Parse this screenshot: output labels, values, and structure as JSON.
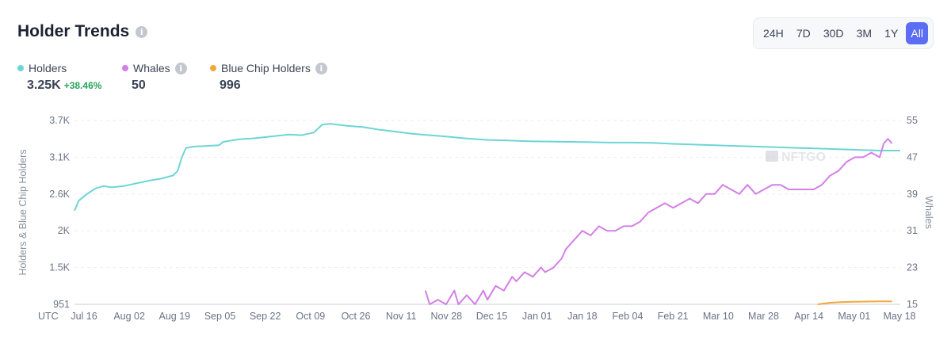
{
  "header": {
    "title": "Holder Trends",
    "info_icon": "i"
  },
  "time_range": {
    "options": [
      "24H",
      "7D",
      "30D",
      "3M",
      "1Y",
      "All"
    ],
    "active": "All"
  },
  "legend": {
    "holders": {
      "label": "Holders",
      "value": "3.25K",
      "change": "+38.46%",
      "color": "#6dd5d5"
    },
    "whales": {
      "label": "Whales",
      "value": "50",
      "color": "#d47fe6"
    },
    "blue_chip": {
      "label": "Blue Chip Holders",
      "value": "996",
      "color": "#f2a93b"
    }
  },
  "watermark": "NFTGO",
  "chart_data": {
    "type": "line",
    "timezone_label": "UTC",
    "x_ticks": [
      "Jul 16",
      "Aug 02",
      "Aug 19",
      "Sep 05",
      "Sep 22",
      "Oct 09",
      "Oct 26",
      "Nov 11",
      "Nov 28",
      "Dec 15",
      "Jan 01",
      "Jan 18",
      "Feb 04",
      "Feb 21",
      "Mar 10",
      "Mar 28",
      "Apr 14",
      "May 01",
      "May 18"
    ],
    "y_left": {
      "label": "Holders & Blue Chip Holders",
      "ticks": [
        "3.7K",
        "3.1K",
        "2.6K",
        "2K",
        "1.5K",
        "951"
      ],
      "range": [
        951,
        3700
      ]
    },
    "y_right": {
      "label": "Whales",
      "ticks": [
        "55",
        "47",
        "39",
        "31",
        "23",
        "15"
      ],
      "range": [
        15,
        55
      ]
    },
    "series": [
      {
        "name": "Holders",
        "axis": "left",
        "color": "#6dd5d5",
        "points": [
          [
            0,
            2350
          ],
          [
            1,
            2500
          ],
          [
            3,
            2600
          ],
          [
            5,
            2680
          ],
          [
            7,
            2720
          ],
          [
            9,
            2700
          ],
          [
            12,
            2720
          ],
          [
            15,
            2760
          ],
          [
            18,
            2800
          ],
          [
            21,
            2830
          ],
          [
            24,
            2880
          ],
          [
            25,
            2950
          ],
          [
            26,
            3150
          ],
          [
            27,
            3290
          ],
          [
            29,
            3310
          ],
          [
            32,
            3320
          ],
          [
            35,
            3330
          ],
          [
            36,
            3380
          ],
          [
            38,
            3400
          ],
          [
            40,
            3420
          ],
          [
            43,
            3430
          ],
          [
            46,
            3450
          ],
          [
            49,
            3470
          ],
          [
            52,
            3490
          ],
          [
            55,
            3480
          ],
          [
            58,
            3520
          ],
          [
            60,
            3640
          ],
          [
            62,
            3650
          ],
          [
            66,
            3620
          ],
          [
            70,
            3600
          ],
          [
            74,
            3560
          ],
          [
            78,
            3530
          ],
          [
            82,
            3500
          ],
          [
            86,
            3480
          ],
          [
            90,
            3460
          ],
          [
            95,
            3430
          ],
          [
            100,
            3410
          ],
          [
            105,
            3400
          ],
          [
            110,
            3390
          ],
          [
            115,
            3385
          ],
          [
            120,
            3380
          ],
          [
            125,
            3375
          ],
          [
            130,
            3370
          ],
          [
            135,
            3370
          ],
          [
            140,
            3365
          ],
          [
            145,
            3350
          ],
          [
            150,
            3340
          ],
          [
            155,
            3330
          ],
          [
            160,
            3320
          ],
          [
            165,
            3310
          ],
          [
            170,
            3300
          ],
          [
            175,
            3290
          ],
          [
            180,
            3280
          ],
          [
            185,
            3270
          ],
          [
            190,
            3260
          ],
          [
            195,
            3250
          ],
          [
            200,
            3250
          ]
        ]
      },
      {
        "name": "Whales",
        "axis": "right",
        "color": "#d47fe6",
        "points": [
          [
            85,
            18
          ],
          [
            86,
            15
          ],
          [
            88,
            16
          ],
          [
            90,
            15
          ],
          [
            92,
            18
          ],
          [
            93,
            15
          ],
          [
            95,
            17
          ],
          [
            97,
            15
          ],
          [
            99,
            18
          ],
          [
            100,
            16
          ],
          [
            102,
            19
          ],
          [
            104,
            18
          ],
          [
            106,
            21
          ],
          [
            107,
            20
          ],
          [
            109,
            22
          ],
          [
            111,
            21
          ],
          [
            113,
            23
          ],
          [
            114,
            22
          ],
          [
            116,
            23
          ],
          [
            118,
            25
          ],
          [
            119,
            27
          ],
          [
            121,
            29
          ],
          [
            123,
            31
          ],
          [
            125,
            30
          ],
          [
            127,
            32
          ],
          [
            129,
            31
          ],
          [
            131,
            31
          ],
          [
            133,
            32
          ],
          [
            135,
            32
          ],
          [
            137,
            33
          ],
          [
            139,
            35
          ],
          [
            141,
            36
          ],
          [
            143,
            37
          ],
          [
            145,
            36
          ],
          [
            147,
            37
          ],
          [
            149,
            38
          ],
          [
            151,
            37
          ],
          [
            153,
            39
          ],
          [
            155,
            39
          ],
          [
            157,
            41
          ],
          [
            159,
            40
          ],
          [
            161,
            39
          ],
          [
            163,
            41
          ],
          [
            165,
            39
          ],
          [
            167,
            40
          ],
          [
            169,
            41
          ],
          [
            171,
            41
          ],
          [
            173,
            40
          ],
          [
            175,
            40
          ],
          [
            177,
            40
          ],
          [
            179,
            40
          ],
          [
            181,
            41
          ],
          [
            183,
            43
          ],
          [
            185,
            44
          ],
          [
            187,
            46
          ],
          [
            189,
            47
          ],
          [
            191,
            47
          ],
          [
            193,
            48
          ],
          [
            195,
            47
          ],
          [
            196,
            50
          ],
          [
            197,
            51
          ],
          [
            198,
            50
          ]
        ]
      },
      {
        "name": "Blue Chip Holders",
        "axis": "left",
        "color": "#f2a93b",
        "points": [
          [
            180,
            951
          ],
          [
            183,
            975
          ],
          [
            186,
            985
          ],
          [
            189,
            990
          ],
          [
            192,
            993
          ],
          [
            195,
            995
          ],
          [
            198,
            996
          ]
        ]
      }
    ],
    "x_index_range": [
      0,
      200
    ],
    "legend_position": "top-left",
    "grid": true
  }
}
